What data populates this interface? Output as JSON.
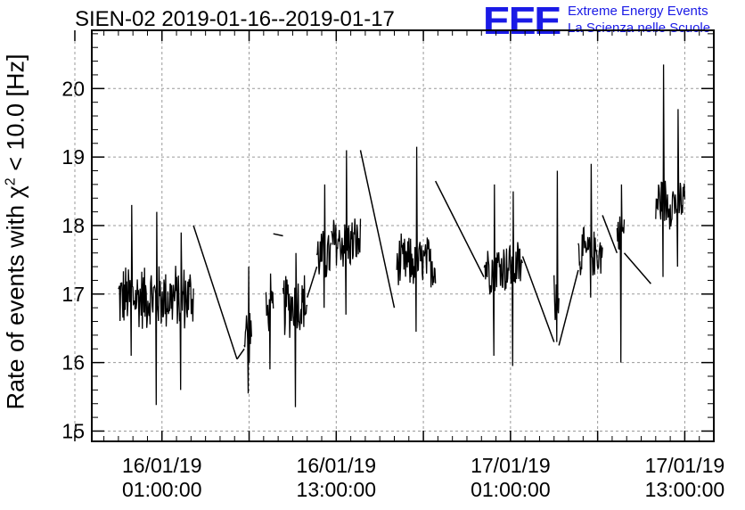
{
  "header": {
    "title": "SIEN-02 2019-01-16--2019-01-17",
    "logo_letters": "EEE",
    "logo_line1": "Extreme Energy Events",
    "logo_line2": "La Scienza nelle Scuole"
  },
  "colors": {
    "brand": "#1a1ae6",
    "series": "#000000",
    "grid": "#9a9a9a"
  },
  "chart_data": {
    "type": "line",
    "title": "SIEN-02 2019-01-16--2019-01-17",
    "ylabel_parts": [
      "Rate of events with ",
      "χ",
      "2",
      " < 10.0 [Hz]"
    ],
    "ylim": [
      14.85,
      20.85
    ],
    "xlim": [
      "2019-01-15T20:10:00",
      "2019-01-17T15:00:00"
    ],
    "yticks": [
      "15",
      "16",
      "17",
      "18",
      "19",
      "20"
    ],
    "xticks": [
      {
        "x": "2019-01-16T01:00:00",
        "date": "16/01/19",
        "time": "01:00:00"
      },
      {
        "x": "2019-01-16T13:00:00",
        "date": "16/01/19",
        "time": "13:00:00"
      },
      {
        "x": "2019-01-17T01:00:00",
        "date": "17/01/19",
        "time": "01:00:00"
      },
      {
        "x": "2019-01-17T13:00:00",
        "date": "17/01/19",
        "time": "13:00:00"
      }
    ],
    "grid": true,
    "series": [
      {
        "segments": [
          {
            "start": "2019-01-15T22:00:00",
            "end": "2019-01-16T03:10:00",
            "mean": 16.95,
            "spread": 0.55,
            "spikes": [
              [
                16.1,
                18.3
              ],
              [
                15.38,
                18.2
              ],
              [
                15.6,
                17.9
              ]
            ]
          },
          {
            "start": "2019-01-16T06:40:00",
            "end": "2019-01-16T07:10:00",
            "mean": 16.45,
            "spread": 0.5,
            "spikes": [
              [
                15.55,
                17.4
              ]
            ]
          },
          {
            "start": "2019-01-16T08:10:00",
            "end": "2019-01-16T08:40:00",
            "mean": 16.7,
            "spread": 0.4,
            "spikes": [
              [
                15.9,
                17.3
              ]
            ]
          },
          {
            "start": "2019-01-16T09:20:00",
            "end": "2019-01-16T11:00:00",
            "mean": 16.85,
            "spread": 0.55,
            "spikes": [
              [
                15.35,
                17.6
              ]
            ]
          },
          {
            "start": "2019-01-16T11:40:00",
            "end": "2019-01-16T12:40:00",
            "mean": 17.55,
            "spread": 0.45,
            "spikes": [
              [
                16.8,
                18.6
              ]
            ]
          },
          {
            "start": "2019-01-16T12:40:00",
            "end": "2019-01-16T14:40:00",
            "mean": 17.75,
            "spread": 0.45,
            "spikes": [
              [
                16.7,
                19.1
              ]
            ]
          },
          {
            "start": "2019-01-16T17:10:00",
            "end": "2019-01-16T19:50:00",
            "mean": 17.45,
            "spread": 0.45,
            "spikes": [
              [
                16.45,
                19.15
              ]
            ]
          },
          {
            "start": "2019-01-16T23:10:00",
            "end": "2019-01-17T01:50:00",
            "mean": 17.4,
            "spread": 0.45,
            "spikes": [
              [
                16.1,
                18.6
              ],
              [
                15.95,
                18.5
              ]
            ]
          },
          {
            "start": "2019-01-17T04:00:00",
            "end": "2019-01-17T04:20:00",
            "mean": 17.0,
            "spread": 0.45,
            "spikes": [
              [
                16.3,
                18.8
              ]
            ]
          },
          {
            "start": "2019-01-17T05:40:00",
            "end": "2019-01-17T07:20:00",
            "mean": 17.6,
            "spread": 0.4,
            "spikes": [
              [
                16.95,
                18.9
              ]
            ]
          },
          {
            "start": "2019-01-17T08:20:00",
            "end": "2019-01-17T08:50:00",
            "mean": 17.9,
            "spread": 0.3,
            "spikes": [
              [
                16.0,
                18.6
              ]
            ]
          },
          {
            "start": "2019-01-17T11:00:00",
            "end": "2019-01-17T13:00:00",
            "mean": 18.35,
            "spread": 0.45,
            "spikes": [
              [
                17.25,
                20.35
              ],
              [
                17.4,
                19.7
              ]
            ]
          }
        ],
        "gaps": [
          {
            "x": [
              "2019-01-16T03:10:00",
              "2019-01-16T06:10:00"
            ],
            "y": [
              18.0,
              16.05
            ]
          },
          {
            "x": [
              "2019-01-16T06:10:00",
              "2019-01-16T06:40:00"
            ],
            "y": [
              16.05,
              16.2
            ]
          },
          {
            "x": [
              "2019-01-16T08:40:00",
              "2019-01-16T09:20:00"
            ],
            "y": [
              17.88,
              17.85
            ]
          },
          {
            "x": [
              "2019-01-16T11:00:00",
              "2019-01-16T11:40:00"
            ],
            "y": [
              16.95,
              17.4
            ]
          },
          {
            "x": [
              "2019-01-16T14:40:00",
              "2019-01-16T17:00:00"
            ],
            "y": [
              19.1,
              16.8
            ]
          },
          {
            "x": [
              "2019-01-16T19:50:00",
              "2019-01-16T23:10:00"
            ],
            "y": [
              18.65,
              17.25
            ]
          },
          {
            "x": [
              "2019-01-17T01:50:00",
              "2019-01-17T04:00:00"
            ],
            "y": [
              17.55,
              16.3
            ]
          },
          {
            "x": [
              "2019-01-17T04:20:00",
              "2019-01-17T05:40:00"
            ],
            "y": [
              16.25,
              17.35
            ]
          },
          {
            "x": [
              "2019-01-17T07:20:00",
              "2019-01-17T08:20:00"
            ],
            "y": [
              18.15,
              17.6
            ]
          },
          {
            "x": [
              "2019-01-17T08:50:00",
              "2019-01-17T10:40:00"
            ],
            "y": [
              17.6,
              17.15
            ]
          }
        ]
      }
    ]
  }
}
